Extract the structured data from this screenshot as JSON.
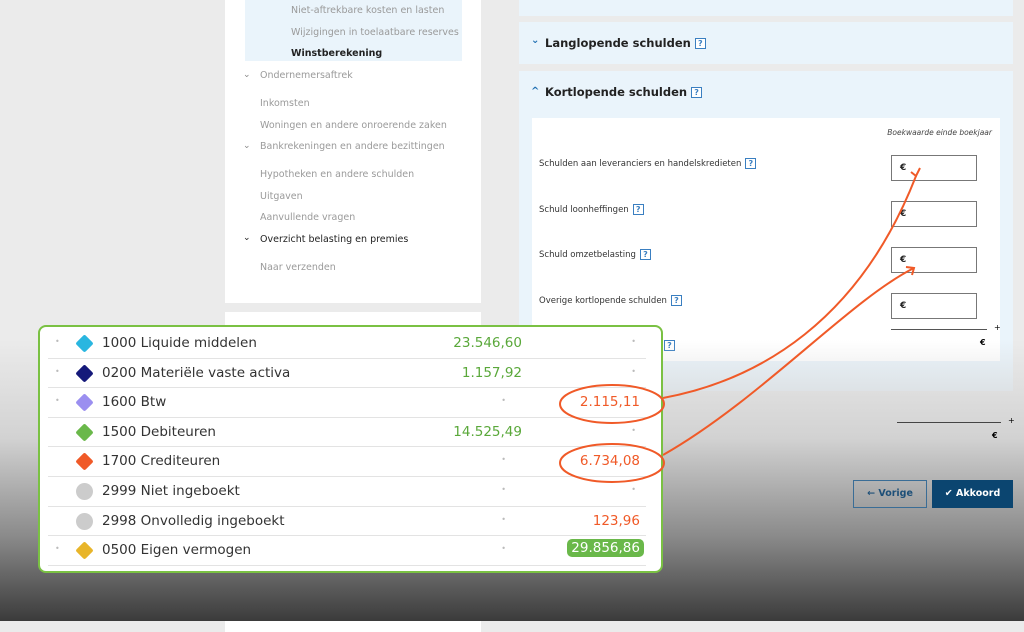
{
  "sidebar": {
    "items": [
      {
        "label": "Niet-aftrekbare kosten en lasten"
      },
      {
        "label": "Wijzigingen in toelaatbare reserves"
      },
      {
        "label": "Winstberekening"
      },
      {
        "label": "Ondernemersaftrek"
      },
      {
        "label": "Inkomsten"
      },
      {
        "label": "Woningen en andere onroerende zaken"
      },
      {
        "label": "Bankrekeningen en andere bezittingen"
      },
      {
        "label": "Hypotheken en andere schulden"
      },
      {
        "label": "Uitgaven"
      },
      {
        "label": "Aanvullende vragen"
      },
      {
        "label": "Overzicht belasting en premies"
      },
      {
        "label": "Naar verzenden"
      }
    ]
  },
  "sections": {
    "langlopend": "Langlopende schulden",
    "kortlopend": "Kortlopende schulden",
    "help": "?"
  },
  "form": {
    "column_header": "Boekwaarde einde boekjaar",
    "currency": "€",
    "plus": "+",
    "fields": [
      {
        "label": "Schulden aan leveranciers en handelskredieten"
      },
      {
        "label": "Schuld loonheffingen"
      },
      {
        "label": "Schuld omzetbelasting"
      },
      {
        "label": "Overige kortlopende schulden"
      }
    ]
  },
  "buttons": {
    "prev": "← Vorige",
    "ok": "✔ Akkoord"
  },
  "accounts": [
    {
      "name": "1000 Liquide middelen",
      "color": "#29b6e0",
      "shape": "diamond",
      "debit": "23.546,60",
      "credit": ""
    },
    {
      "name": "0200 Materiële vaste activa",
      "color": "#15197a",
      "shape": "diamond",
      "debit": "1.157,92",
      "credit": ""
    },
    {
      "name": "1600 Btw",
      "color": "#9b8ff0",
      "shape": "diamond",
      "debit": "",
      "credit": "2.115,11"
    },
    {
      "name": "1500 Debiteuren",
      "color": "#6ab84a",
      "shape": "diamond",
      "debit": "14.525,49",
      "credit": ""
    },
    {
      "name": "1700 Crediteuren",
      "color": "#f05a28",
      "shape": "diamond",
      "debit": "",
      "credit": "6.734,08"
    },
    {
      "name": "2999 Niet ingeboekt",
      "color": "#cccccc",
      "shape": "circle",
      "debit": "",
      "credit": ""
    },
    {
      "name": "2998 Onvolledig ingeboekt",
      "color": "#cccccc",
      "shape": "circle",
      "debit": "",
      "credit": "123,96"
    },
    {
      "name": "0500 Eigen vermogen",
      "color": "#e8b52a",
      "shape": "diamond",
      "debit": "",
      "credit": "29.856,86"
    }
  ],
  "colors": {
    "accent": "#f05a28",
    "card_border": "#7ac143",
    "primary_button": "#0b4570"
  }
}
